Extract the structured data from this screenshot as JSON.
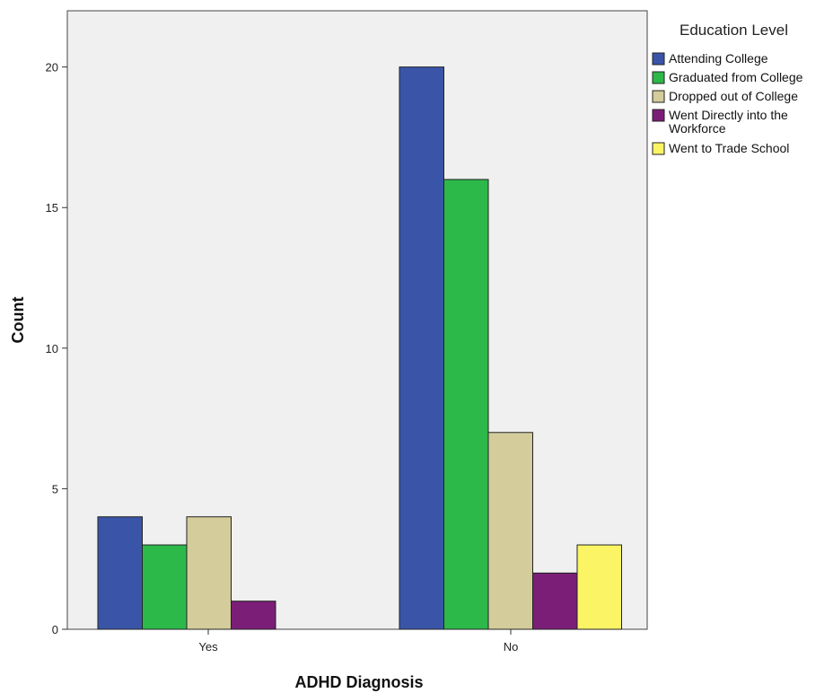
{
  "chart_data": {
    "type": "bar",
    "title": "",
    "xlabel": "ADHD Diagnosis",
    "ylabel": "Count",
    "categories": [
      "Yes",
      "No"
    ],
    "ylim": [
      0,
      22
    ],
    "yticks": [
      0,
      5,
      10,
      15,
      20
    ],
    "grid": false,
    "legend_title": "Education Level",
    "legend_position": "right",
    "series": [
      {
        "name": "Attending College",
        "color": "#3A55A8",
        "values": [
          4,
          20
        ]
      },
      {
        "name": "Graduated from College",
        "color": "#2DB84A",
        "values": [
          3,
          16
        ]
      },
      {
        "name": "Dropped out of College",
        "color": "#D4CC9A",
        "values": [
          4,
          7
        ]
      },
      {
        "name": "Went Directly into the Workforce",
        "color": "#7B1E78",
        "values": [
          1,
          2
        ]
      },
      {
        "name": "Went to Trade School",
        "color": "#FBF464",
        "values": [
          0,
          3
        ]
      }
    ],
    "plot_background": "#F0F0F0"
  }
}
